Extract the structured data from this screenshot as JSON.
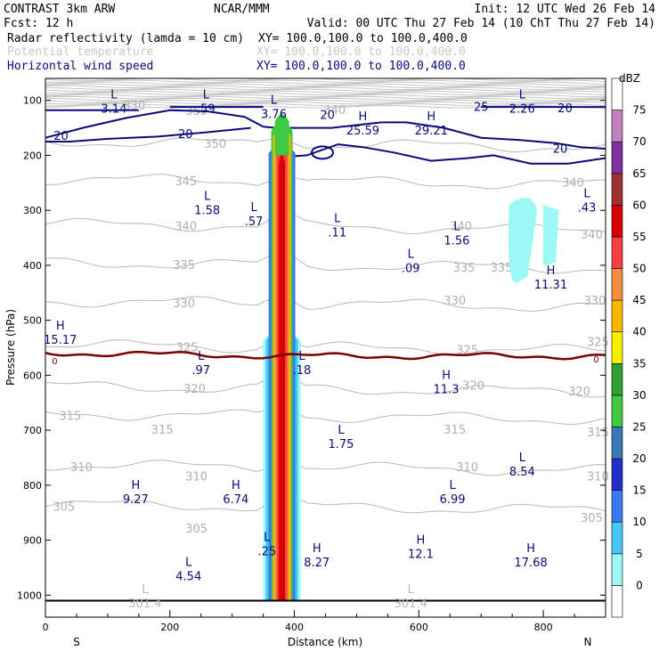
{
  "header": {
    "title_left": "CONTRAST  3km ARW",
    "title_center": "NCAR/MMM",
    "init": "Init: 12 UTC Wed 26 Feb 14",
    "fcst": "Fcst:   12 h",
    "valid": "Valid: 00 UTC Thu 27 Feb 14 (10 ChT Thu 27 Feb 14)",
    "fields": [
      {
        "name": "Radar reflectivity (lamda = 10 cm)",
        "xy": "XY= 100.0,100.0 to 100.0,400.0",
        "color": "#000000"
      },
      {
        "name": "Potential temperature",
        "xy": "XY= 100.0,100.0 to 100.0,400.0",
        "color": "#c8c8c8"
      },
      {
        "name": "Horizontal wind speed",
        "xy": "XY= 100.0,100.0 to 100.0,400.0",
        "color": "#0a0a7a"
      }
    ]
  },
  "chart_data": {
    "type": "cross-section",
    "xlabel": "Distance (km)",
    "ylabel": "Pressure (hPa)",
    "xlim": [
      0,
      900
    ],
    "ylim": [
      1040,
      60
    ],
    "x_ticks": [
      0,
      200,
      400,
      600,
      800
    ],
    "y_ticks": [
      100,
      200,
      300,
      400,
      500,
      600,
      700,
      800,
      900,
      1000
    ],
    "left_end_label": "S",
    "right_end_label": "N",
    "colorbar": {
      "title": "dBZ",
      "labels": [
        "0",
        "5",
        "10",
        "15",
        "20",
        "25",
        "30",
        "35",
        "40",
        "45",
        "50",
        "55",
        "60",
        "65",
        "70",
        "75"
      ],
      "colors": [
        "#ffffff",
        "#9cf8f4",
        "#46c8f4",
        "#3c78f4",
        "#2030c8",
        "#3c78b4",
        "#40c840",
        "#30a030",
        "#f8f000",
        "#f8b800",
        "#f88c40",
        "#f84040",
        "#d80000",
        "#a03030",
        "#8030a0",
        "#c080c0",
        "#ffffff"
      ]
    },
    "reflectivity_core": {
      "x_center_km": 380,
      "top_hpa": 120,
      "max_dbz": 60
    },
    "reflectivity_patch": {
      "x_range_km": [
        745,
        825
      ],
      "p_range_hpa": [
        260,
        450
      ],
      "dbz": 5
    },
    "theta_contours": [
      {
        "value": "350",
        "p": 180,
        "lx": 255
      },
      {
        "value": "345",
        "p": 248,
        "lx": 208
      },
      {
        "value": "340",
        "p": 330,
        "lx": 208
      },
      {
        "value": "335",
        "p": 400,
        "lx": 205
      },
      {
        "value": "330",
        "p": 470,
        "lx": 205
      },
      {
        "value": "325",
        "p": 550,
        "lx": 210
      },
      {
        "value": "320",
        "p": 625,
        "lx": 222
      },
      {
        "value": "315",
        "p": 675,
        "lx": 22
      },
      {
        "value": "310",
        "p": 768,
        "lx": 40
      },
      {
        "value": "305",
        "p": 840,
        "lx": 12
      }
    ],
    "theta_right_labels": [
      {
        "value": "340",
        "p": 250,
        "x": 830
      },
      {
        "value": "340",
        "p": 330,
        "x": 650
      },
      {
        "value": "340",
        "p": 345,
        "x": 860
      },
      {
        "value": "335",
        "p": 405,
        "x": 655
      },
      {
        "value": "335",
        "p": 405,
        "x": 715
      },
      {
        "value": "330",
        "p": 465,
        "x": 640
      },
      {
        "value": "330",
        "p": 465,
        "x": 865
      },
      {
        "value": "325",
        "p": 555,
        "x": 660
      },
      {
        "value": "325",
        "p": 540,
        "x": 870
      },
      {
        "value": "320",
        "p": 620,
        "x": 670
      },
      {
        "value": "320",
        "p": 630,
        "x": 840
      },
      {
        "value": "315",
        "p": 700,
        "x": 170
      },
      {
        "value": "315",
        "p": 700,
        "x": 640
      },
      {
        "value": "315",
        "p": 705,
        "x": 870
      },
      {
        "value": "310",
        "p": 785,
        "x": 225
      },
      {
        "value": "310",
        "p": 768,
        "x": 660
      },
      {
        "value": "310",
        "p": 785,
        "x": 870
      },
      {
        "value": "305",
        "p": 880,
        "x": 225
      },
      {
        "value": "305",
        "p": 860,
        "x": 860
      },
      {
        "value": "330",
        "p": 110,
        "x": 125
      },
      {
        "value": "355",
        "p": 120,
        "x": 225
      },
      {
        "value": "340",
        "p": 118,
        "x": 447
      }
    ],
    "wind_labels": [
      {
        "value": "20",
        "p": 165,
        "x": 25
      },
      {
        "value": "20",
        "p": 162,
        "x": 225
      },
      {
        "value": "20",
        "p": 127,
        "x": 453
      },
      {
        "value": "25",
        "p": 113,
        "x": 700
      },
      {
        "value": "20",
        "p": 115,
        "x": 835
      },
      {
        "value": "20",
        "p": 189,
        "x": 827
      }
    ],
    "zero_line": {
      "value": "0",
      "p_avg": 565
    },
    "extrema_wind": [
      {
        "type": "L",
        "value": "3.14",
        "x": 110,
        "p": 90
      },
      {
        "type": "L",
        "value": ".59",
        "x": 258,
        "p": 90
      },
      {
        "type": "L",
        "value": "3.76",
        "x": 367,
        "p": 100
      },
      {
        "type": "H",
        "value": "25.59",
        "x": 510,
        "p": 130
      },
      {
        "type": "H",
        "value": "29.21",
        "x": 620,
        "p": 130
      },
      {
        "type": "L",
        "value": "2.26",
        "x": 766,
        "p": 90
      },
      {
        "type": "L",
        "value": "1.58",
        "x": 260,
        "p": 275
      },
      {
        "type": "L",
        "value": ".57",
        "x": 335,
        "p": 295
      },
      {
        "type": "L",
        "value": ".11",
        "x": 469,
        "p": 315
      },
      {
        "type": "L",
        "value": "1.56",
        "x": 661,
        "p": 330
      },
      {
        "type": "L",
        "value": ".09",
        "x": 587,
        "p": 380
      },
      {
        "type": "L",
        "value": ".43",
        "x": 870,
        "p": 270
      },
      {
        "type": "H",
        "value": "11.31",
        "x": 812,
        "p": 410
      },
      {
        "type": "H",
        "value": "15.17",
        "x": 24,
        "p": 510
      },
      {
        "type": "L",
        "value": ".97",
        "x": 250,
        "p": 565
      },
      {
        "type": "L",
        "value": ".18",
        "x": 412,
        "p": 565
      },
      {
        "type": "H",
        "value": "11.3",
        "x": 644,
        "p": 600
      },
      {
        "type": "L",
        "value": "1.75",
        "x": 475,
        "p": 700
      },
      {
        "type": "L",
        "value": "8.54",
        "x": 766,
        "p": 750
      },
      {
        "type": "H",
        "value": "9.27",
        "x": 145,
        "p": 800
      },
      {
        "type": "H",
        "value": "6.74",
        "x": 306,
        "p": 800
      },
      {
        "type": "L",
        "value": "6.99",
        "x": 654,
        "p": 800
      },
      {
        "type": "L",
        "value": ".25",
        "x": 356,
        "p": 895
      },
      {
        "type": "H",
        "value": "8.27",
        "x": 436,
        "p": 915
      },
      {
        "type": "H",
        "value": "12.1",
        "x": 603,
        "p": 900
      },
      {
        "type": "H",
        "value": "17.68",
        "x": 780,
        "p": 915
      },
      {
        "type": "L",
        "value": "4.54",
        "x": 230,
        "p": 940
      }
    ],
    "extrema_theta": [
      {
        "type": "L",
        "value": "301.4",
        "x": 160,
        "p": 990
      },
      {
        "type": "L",
        "value": "301.4",
        "x": 587,
        "p": 990
      }
    ]
  }
}
